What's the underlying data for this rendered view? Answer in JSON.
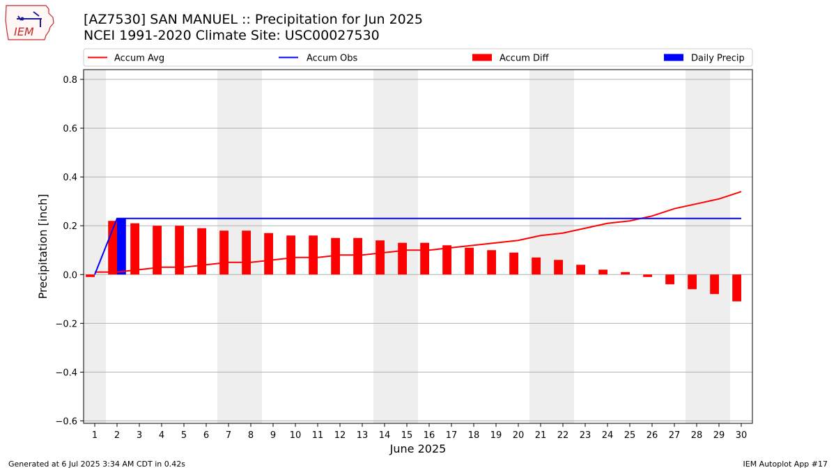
{
  "header": {
    "title_line1": "[AZ7530] SAN MANUEL :: Precipitation for Jun 2025",
    "title_line2": "NCEI 1991-2020 Climate Site: USC00027530",
    "logo_text": "IEM"
  },
  "footer": {
    "generated": "Generated at 6 Jul 2025 3:34 AM CDT in 0.42s",
    "app": "IEM Autoplot App #17"
  },
  "colors": {
    "accum_avg": "#ff0000",
    "accum_obs": "#0000ff",
    "accum_diff": "#ff0000",
    "daily_precip": "#0000ff",
    "weekend_shade": "#eeeeee",
    "grid": "#b0b0b0"
  },
  "chart_data": {
    "type": "bar",
    "xlabel": "June 2025",
    "ylabel": "Precipitation [inch]",
    "x": [
      1,
      2,
      3,
      4,
      5,
      6,
      7,
      8,
      9,
      10,
      11,
      12,
      13,
      14,
      15,
      16,
      17,
      18,
      19,
      20,
      21,
      22,
      23,
      24,
      25,
      26,
      27,
      28,
      29,
      30
    ],
    "xticks": [
      "1",
      "2",
      "3",
      "4",
      "5",
      "6",
      "7",
      "8",
      "9",
      "10",
      "11",
      "12",
      "13",
      "14",
      "15",
      "16",
      "17",
      "18",
      "19",
      "20",
      "21",
      "22",
      "23",
      "24",
      "25",
      "26",
      "27",
      "28",
      "29",
      "30"
    ],
    "xlim": [
      0.5,
      30.5
    ],
    "ylim": [
      -0.61,
      0.84
    ],
    "yticks": [
      -0.6,
      -0.4,
      -0.2,
      0.0,
      0.2,
      0.4,
      0.6,
      0.8
    ],
    "ytick_labels": [
      "−0.6",
      "−0.4",
      "−0.2",
      "0.0",
      "0.2",
      "0.4",
      "0.6",
      "0.8"
    ],
    "grid": "horizontal",
    "legend_placement": "top, above plot",
    "weekend_days": [
      1,
      7,
      8,
      14,
      15,
      21,
      22,
      28,
      29
    ],
    "series": [
      {
        "name": "Accum Avg",
        "kind": "line",
        "values": [
          0.01,
          0.01,
          0.02,
          0.03,
          0.03,
          0.04,
          0.05,
          0.05,
          0.06,
          0.07,
          0.07,
          0.08,
          0.08,
          0.09,
          0.1,
          0.1,
          0.11,
          0.12,
          0.13,
          0.14,
          0.16,
          0.17,
          0.19,
          0.21,
          0.22,
          0.24,
          0.27,
          0.29,
          0.31,
          0.34
        ]
      },
      {
        "name": "Accum Obs",
        "kind": "line",
        "values": [
          0.0,
          0.23,
          0.23,
          0.23,
          0.23,
          0.23,
          0.23,
          0.23,
          0.23,
          0.23,
          0.23,
          0.23,
          0.23,
          0.23,
          0.23,
          0.23,
          0.23,
          0.23,
          0.23,
          0.23,
          0.23,
          0.23,
          0.23,
          0.23,
          0.23,
          0.23,
          0.23,
          0.23,
          0.23,
          0.23
        ]
      },
      {
        "name": "Accum Diff",
        "kind": "bar",
        "values": [
          -0.01,
          0.22,
          0.21,
          0.2,
          0.2,
          0.19,
          0.18,
          0.18,
          0.17,
          0.16,
          0.16,
          0.15,
          0.15,
          0.14,
          0.13,
          0.13,
          0.12,
          0.11,
          0.1,
          0.09,
          0.07,
          0.06,
          0.04,
          0.02,
          0.01,
          -0.01,
          -0.04,
          -0.06,
          -0.08,
          -0.11
        ]
      },
      {
        "name": "Daily Precip",
        "kind": "bar",
        "values": [
          0,
          0.23,
          0,
          0,
          0,
          0,
          0,
          0,
          0,
          0,
          0,
          0,
          0,
          0,
          0,
          0,
          0,
          0,
          0,
          0,
          0,
          0,
          0,
          0,
          0,
          0,
          0,
          0,
          0,
          0
        ]
      }
    ]
  }
}
